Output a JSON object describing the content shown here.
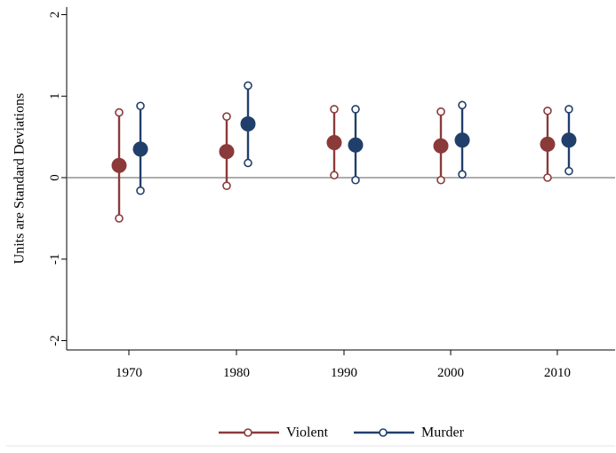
{
  "chart_data": {
    "type": "scatter",
    "subtype": "point-with-error-bars",
    "ylabel": "Units are Standard Deviations",
    "xlabel": "",
    "ylim": [
      -2,
      2
    ],
    "yticks": [
      -2,
      -1,
      0,
      1,
      2
    ],
    "categories": [
      "1970",
      "1980",
      "1990",
      "2000",
      "2010"
    ],
    "reference_line_y": 0,
    "grid": false,
    "legend": {
      "position": "bottom"
    },
    "series": [
      {
        "name": "Violent",
        "color": "#8b3a3a",
        "values": [
          0.15,
          0.32,
          0.43,
          0.39,
          0.41
        ],
        "lower": [
          -0.5,
          -0.1,
          0.03,
          -0.03,
          0.0
        ],
        "upper": [
          0.8,
          0.75,
          0.84,
          0.81,
          0.82
        ]
      },
      {
        "name": "Murder",
        "color": "#213f6b",
        "values": [
          0.35,
          0.66,
          0.4,
          0.46,
          0.46
        ],
        "lower": [
          -0.16,
          0.18,
          -0.03,
          0.04,
          0.08
        ],
        "upper": [
          0.88,
          1.13,
          0.84,
          0.89,
          0.84
        ]
      }
    ]
  }
}
